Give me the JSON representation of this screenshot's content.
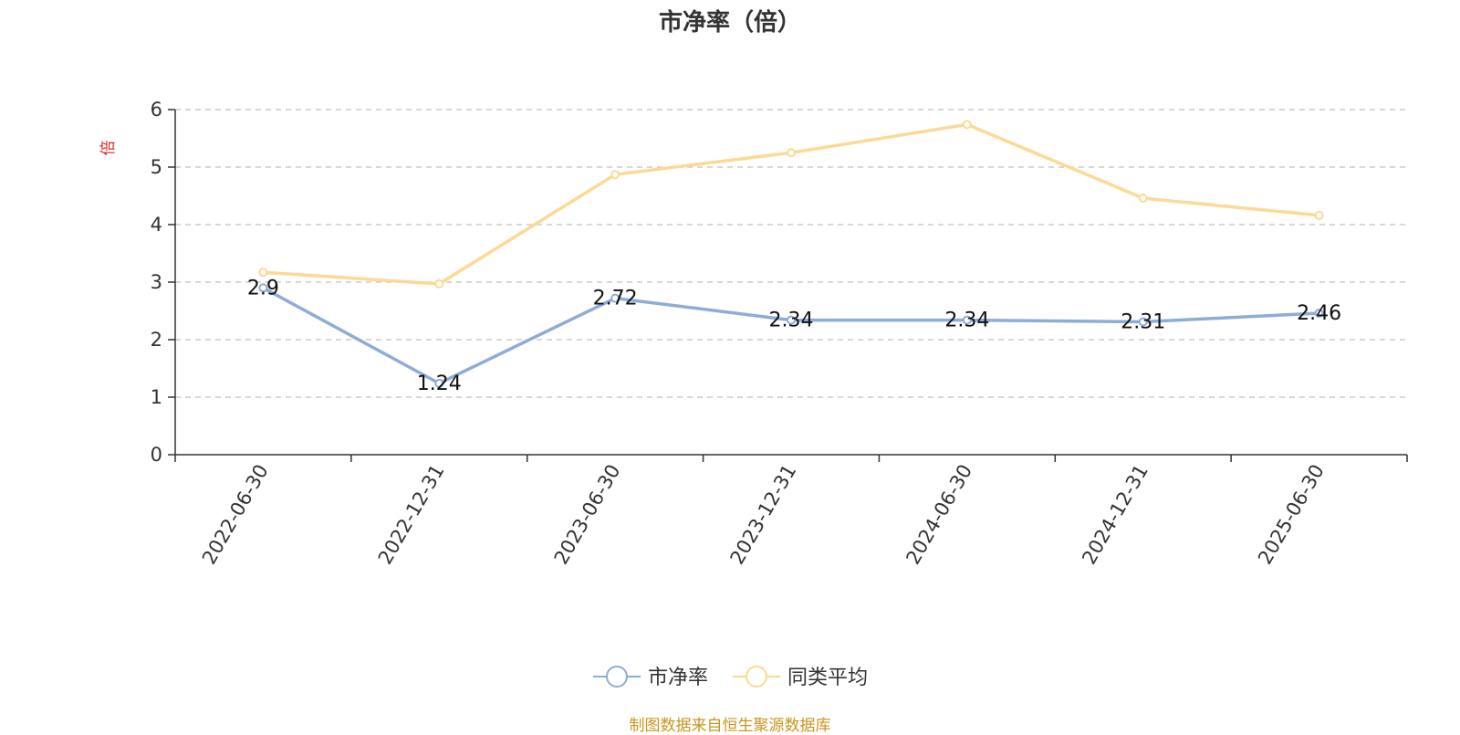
{
  "title": "市净率（倍）",
  "source": "制图数据来自恒生聚源数据库",
  "chart_data": {
    "type": "line",
    "title": "市净率（倍）",
    "xlabel": "",
    "ylabel": "倍",
    "x": [
      "2022-06-30",
      "2022-12-31",
      "2023-06-30",
      "2023-12-31",
      "2024-06-30",
      "2024-12-31",
      "2025-06-30"
    ],
    "ylim": [
      0,
      6
    ],
    "yticks": [
      0,
      1,
      2,
      3,
      4,
      5,
      6
    ],
    "grid": true,
    "legend_position": "bottom-center",
    "series": [
      {
        "name": "市净率",
        "color": "#8eacd8",
        "values": [
          2.9,
          1.24,
          2.72,
          2.34,
          2.34,
          2.31,
          2.46
        ],
        "labels": [
          "2.9",
          "1.24",
          "2.72",
          "2.34",
          "2.34",
          "2.31",
          "2.46"
        ]
      },
      {
        "name": "同类平均",
        "color": "#fcd994",
        "values": [
          3.17,
          2.97,
          4.87,
          5.25,
          5.74,
          4.46,
          4.16
        ]
      }
    ]
  }
}
